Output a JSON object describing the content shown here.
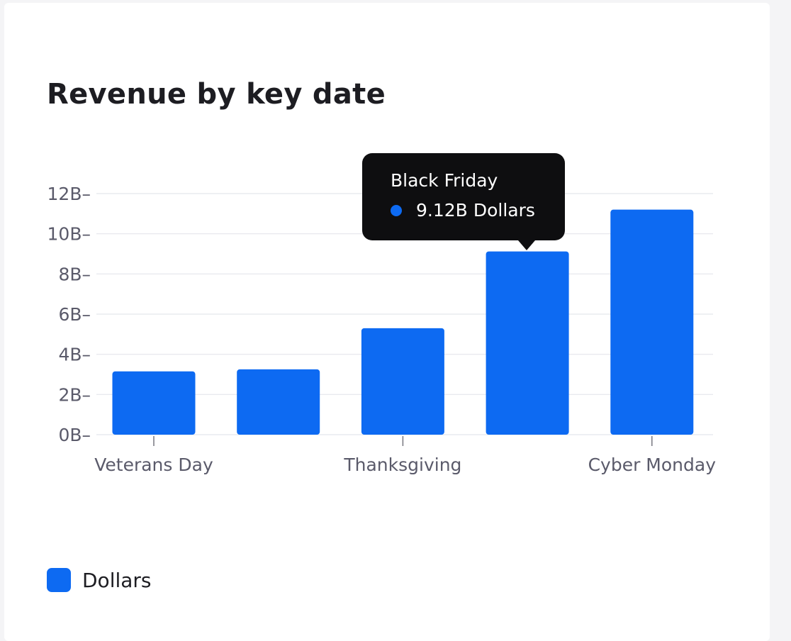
{
  "colors": {
    "bar": "#0d6af2",
    "grid": "#e4e6ec",
    "tick_text": "#5a5a6a",
    "tooltip_bg": "#0e0e10"
  },
  "chart_data": {
    "type": "bar",
    "title": "Revenue by key date",
    "categories": [
      "Veterans Day",
      "",
      "Thanksgiving",
      "Black Friday",
      "Cyber Monday"
    ],
    "x_tick_labels": [
      "Veterans Day",
      "",
      "Thanksgiving",
      "",
      "Cyber Monday"
    ],
    "series": [
      {
        "name": "Dollars",
        "values": [
          3.15,
          3.25,
          5.3,
          9.12,
          11.2
        ]
      }
    ],
    "y_ticks": [
      0,
      2,
      4,
      6,
      8,
      10,
      12
    ],
    "y_tick_labels": [
      "0B–",
      "2B–",
      "4B–",
      "6B–",
      "8B–",
      "10B–",
      "12B–"
    ],
    "ylim": [
      0,
      12
    ],
    "grid": true,
    "legend": {
      "position": "bottom-left",
      "label": "Dollars"
    },
    "tooltip": {
      "category": "Black Friday",
      "value_text": "9.12B",
      "unit": "Dollars"
    }
  }
}
